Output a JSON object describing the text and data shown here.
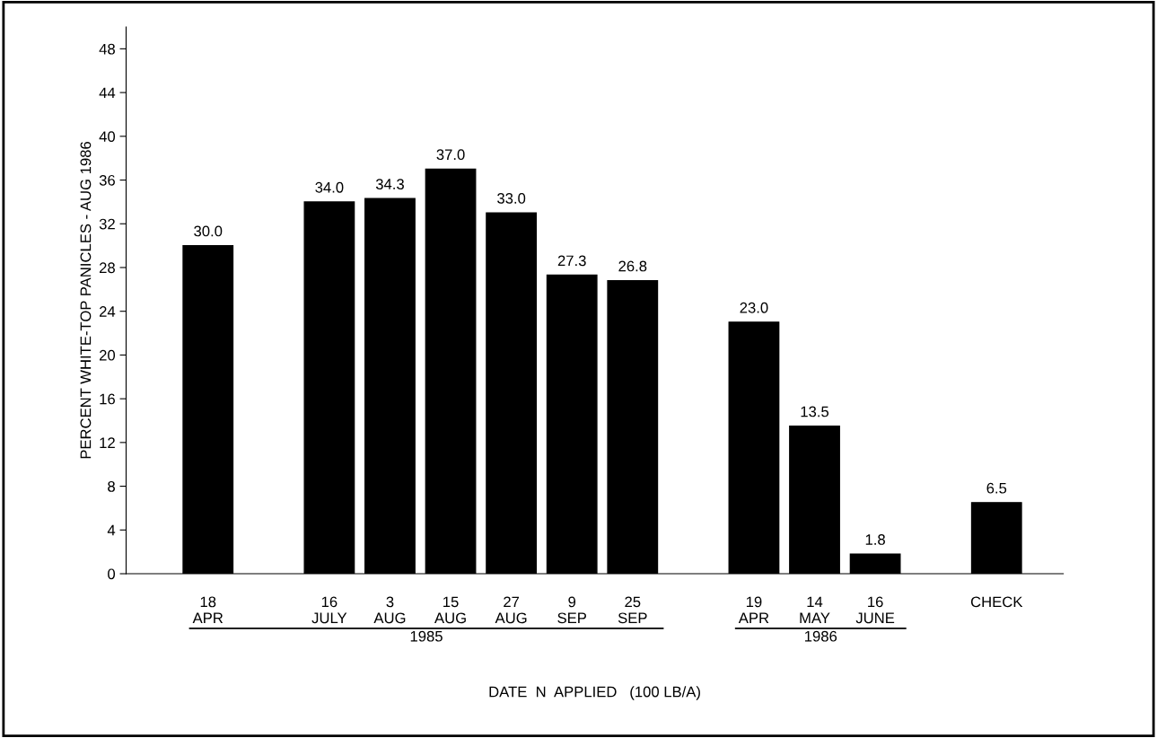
{
  "chart_data": {
    "type": "bar",
    "xlabel": "DATE  N  APPLIED   (100 LB/A)",
    "ylabel": "PERCENT WHITE-TOP PANICLES - AUG 1986",
    "categories": [
      "18\nAPR",
      null,
      "16\nJULY",
      "3\nAUG",
      "15\nAUG",
      "27\nAUG",
      "9\nSEP",
      "25\nSEP",
      null,
      "19\nAPR",
      "14\nMAY",
      "16\nJUNE",
      null,
      "CHECK"
    ],
    "values": [
      30.0,
      null,
      34.0,
      34.3,
      37.0,
      33.0,
      27.3,
      26.8,
      null,
      23.0,
      13.5,
      1.8,
      null,
      6.5
    ],
    "color": "#000000",
    "ylim": [
      0,
      50
    ],
    "yticks": [
      0,
      4,
      8,
      12,
      16,
      20,
      24,
      28,
      32,
      36,
      40,
      44,
      48
    ],
    "value_labels": [
      "30.0",
      null,
      "34.0",
      "34.3",
      "37.0",
      "33.0",
      "27.3",
      "26.8",
      null,
      "23.0",
      "13.5",
      "1.8",
      null,
      "6.5"
    ],
    "grid": false,
    "legend": false,
    "annotations": [
      "1985",
      "1986"
    ]
  }
}
